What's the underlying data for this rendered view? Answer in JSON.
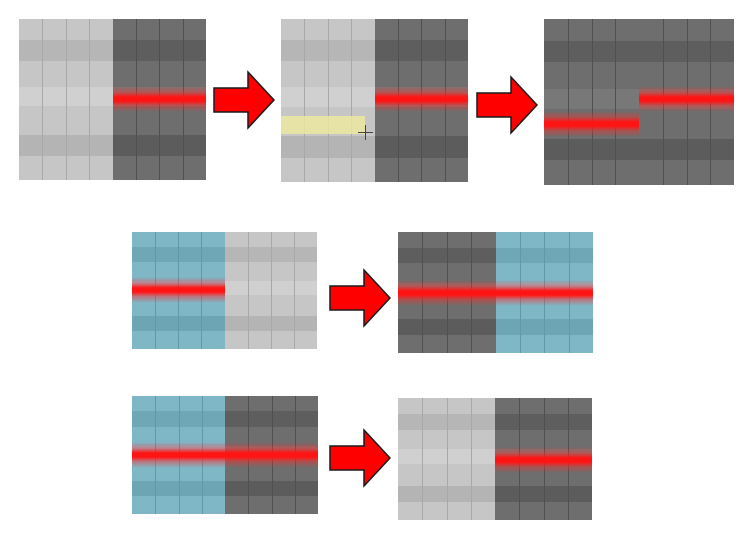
{
  "colors": {
    "light": "#c6c6c6",
    "dark": "#6e6e6e",
    "blue": "#7fb7c7",
    "highlight": "#ece8a0",
    "bar": "#ff1414",
    "arrow": "#ff0000"
  },
  "icons": {
    "arrow": "right-arrow-icon",
    "cursor": "crosshair-cursor-icon"
  },
  "rows": [
    {
      "name": "row-1",
      "panels": [
        {
          "name": "panel-1-1",
          "left": "light",
          "right": "dark",
          "bars": [
            "right"
          ],
          "highlight": false
        },
        {
          "name": "panel-1-2",
          "left": "light",
          "right": "dark",
          "bars": [
            "right"
          ],
          "highlight": true
        },
        {
          "name": "panel-1-3",
          "left": "dark",
          "right": "dark",
          "bars": [
            "left-low",
            "right"
          ],
          "highlight": false
        }
      ]
    },
    {
      "name": "row-2",
      "panels": [
        {
          "name": "panel-2-1",
          "left": "blue",
          "right": "light",
          "bars": [
            "left"
          ],
          "highlight": false
        },
        {
          "name": "panel-2-2",
          "left": "dark",
          "right": "blue",
          "bars": [
            "left",
            "right"
          ],
          "highlight": false
        }
      ]
    },
    {
      "name": "row-3",
      "panels": [
        {
          "name": "panel-3-1",
          "left": "blue",
          "right": "dark",
          "bars": [
            "left",
            "right"
          ],
          "highlight": false
        },
        {
          "name": "panel-3-2",
          "left": "light",
          "right": "dark",
          "bars": [
            "right"
          ],
          "highlight": false
        }
      ]
    }
  ]
}
